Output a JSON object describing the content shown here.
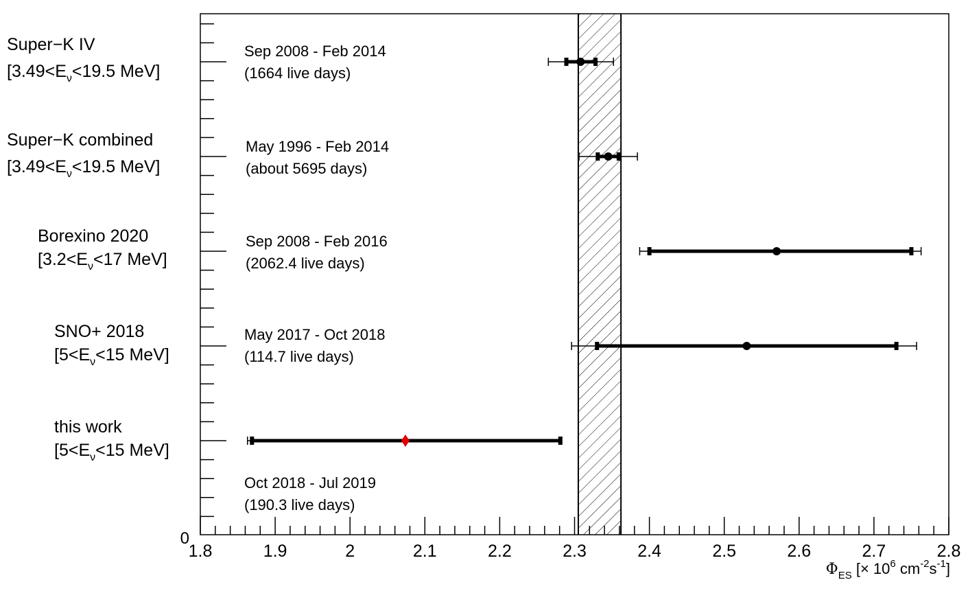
{
  "chart_data": {
    "type": "scatter",
    "xlabel": {
      "phi": "Φ",
      "sub": "ES",
      "pre": " [× 10",
      "exp6": "6",
      "mid": " cm",
      "expm2": "-2",
      "s": "s",
      "expm1": "-1",
      "close": "]"
    },
    "xlim": [
      1.8,
      2.8
    ],
    "xticks": [
      "1.8",
      "1.9",
      "2",
      "2.1",
      "2.2",
      "2.3",
      "2.4",
      "2.5",
      "2.6",
      "2.7",
      "2.8"
    ],
    "yzero_label": "0",
    "band": {
      "x_min": 2.305,
      "x_max": 2.362
    },
    "series": [
      {
        "name": "Super−K IV",
        "energy": {
          "pre": "[3.49<E",
          "sub": "ν",
          "post": "<19.5 MeV]"
        },
        "period": "Sep 2008 - Feb 2014",
        "exposure": "(1664 live days)",
        "value": 2.308,
        "stat": [
          2.289,
          2.328
        ],
        "total": [
          2.265,
          2.352
        ],
        "color": "#000000",
        "marker": "circle"
      },
      {
        "name": "Super−K combined",
        "energy": {
          "pre": "[3.49<E",
          "sub": "ν",
          "post": "<19.5 MeV]"
        },
        "period": "May 1996 - Feb 2014",
        "exposure": "(about 5695 days)",
        "value": 2.345,
        "stat": [
          2.331,
          2.359
        ],
        "total": [
          2.306,
          2.384
        ],
        "color": "#000000",
        "marker": "circle"
      },
      {
        "name": "Borexino 2020",
        "energy": {
          "pre": "[3.2<E",
          "sub": "ν",
          "post": "<17 MeV]"
        },
        "period": "Sep 2008 - Feb 2016",
        "exposure": "(2062.4 live days)",
        "value": 2.57,
        "stat": [
          2.4,
          2.75
        ],
        "total": [
          2.387,
          2.763
        ],
        "color": "#000000",
        "marker": "circle"
      },
      {
        "name": "SNO+ 2018",
        "energy": {
          "pre": "[5<E",
          "sub": "ν",
          "post": "<15 MeV]"
        },
        "period": "May 2017 - Oct 2018",
        "exposure": "(114.7 live days)",
        "value": 2.53,
        "stat": [
          2.33,
          2.73
        ],
        "total": [
          2.296,
          2.757
        ],
        "color": "#000000",
        "marker": "circle"
      },
      {
        "name": "this work",
        "energy": {
          "pre": "[5<E",
          "sub": "ν",
          "post": "<15 MeV]"
        },
        "period": "Oct 2018 - Jul 2019",
        "exposure": "(190.3 live days)",
        "value": 2.074,
        "stat": [
          1.869,
          2.281
        ],
        "total": [
          1.863,
          2.283
        ],
        "color": "#e00000",
        "marker": "diamond"
      }
    ]
  }
}
